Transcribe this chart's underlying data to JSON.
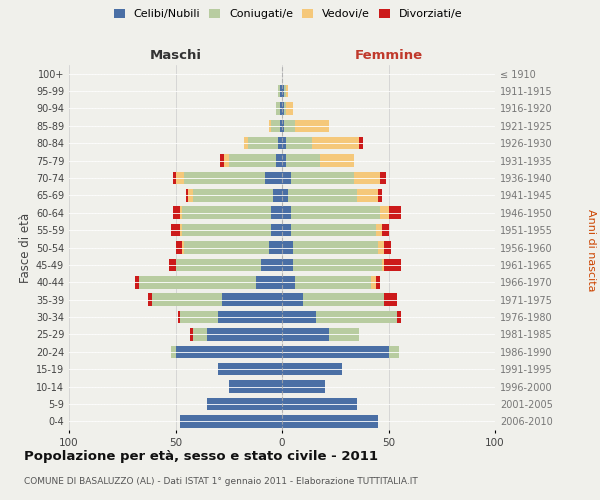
{
  "age_groups": [
    "0-4",
    "5-9",
    "10-14",
    "15-19",
    "20-24",
    "25-29",
    "30-34",
    "35-39",
    "40-44",
    "45-49",
    "50-54",
    "55-59",
    "60-64",
    "65-69",
    "70-74",
    "75-79",
    "80-84",
    "85-89",
    "90-94",
    "95-99",
    "100+"
  ],
  "birth_years": [
    "2006-2010",
    "2001-2005",
    "1996-2000",
    "1991-1995",
    "1986-1990",
    "1981-1985",
    "1976-1980",
    "1971-1975",
    "1966-1970",
    "1961-1965",
    "1956-1960",
    "1951-1955",
    "1946-1950",
    "1941-1945",
    "1936-1940",
    "1931-1935",
    "1926-1930",
    "1921-1925",
    "1916-1920",
    "1911-1915",
    "≤ 1910"
  ],
  "males": {
    "celibi": [
      48,
      35,
      25,
      30,
      50,
      35,
      30,
      28,
      12,
      10,
      6,
      5,
      5,
      4,
      8,
      3,
      2,
      1,
      1,
      1,
      0
    ],
    "coniugati": [
      0,
      0,
      0,
      0,
      2,
      7,
      18,
      33,
      55,
      40,
      40,
      42,
      42,
      38,
      38,
      22,
      14,
      4,
      2,
      1,
      0
    ],
    "vedovi": [
      0,
      0,
      0,
      0,
      0,
      0,
      0,
      0,
      0,
      0,
      1,
      1,
      1,
      2,
      4,
      2,
      2,
      1,
      0,
      0,
      0
    ],
    "divorziati": [
      0,
      0,
      0,
      0,
      0,
      1,
      1,
      2,
      2,
      3,
      3,
      4,
      3,
      1,
      1,
      2,
      0,
      0,
      0,
      0,
      0
    ]
  },
  "females": {
    "nubili": [
      45,
      35,
      20,
      28,
      50,
      22,
      16,
      10,
      6,
      5,
      5,
      4,
      4,
      3,
      4,
      2,
      2,
      1,
      1,
      1,
      0
    ],
    "coniugate": [
      0,
      0,
      0,
      0,
      5,
      14,
      38,
      38,
      36,
      42,
      40,
      40,
      42,
      32,
      30,
      16,
      12,
      5,
      1,
      1,
      0
    ],
    "vedove": [
      0,
      0,
      0,
      0,
      0,
      0,
      0,
      0,
      2,
      1,
      3,
      3,
      4,
      10,
      12,
      16,
      22,
      16,
      3,
      1,
      0
    ],
    "divorziate": [
      0,
      0,
      0,
      0,
      0,
      0,
      2,
      6,
      2,
      8,
      3,
      3,
      6,
      2,
      3,
      0,
      2,
      0,
      0,
      0,
      0
    ]
  },
  "colors": {
    "celibi": "#4a6fa5",
    "coniugati": "#b8cca0",
    "vedovi": "#f5c87a",
    "divorziati": "#cc1a1a"
  },
  "xlim": 100,
  "title": "Popolazione per età, sesso e stato civile - 2011",
  "subtitle": "COMUNE DI BASALUZZO (AL) - Dati ISTAT 1° gennaio 2011 - Elaborazione TUTTITALIA.IT",
  "ylabel_left": "Fasce di età",
  "ylabel_right": "Anni di nascita",
  "label_maschi": "Maschi",
  "label_femmine": "Femmine",
  "bg_color": "#f0f0eb",
  "legend": [
    "Celibi/Nubili",
    "Coniugati/e",
    "Vedovi/e",
    "Divorziati/e"
  ]
}
